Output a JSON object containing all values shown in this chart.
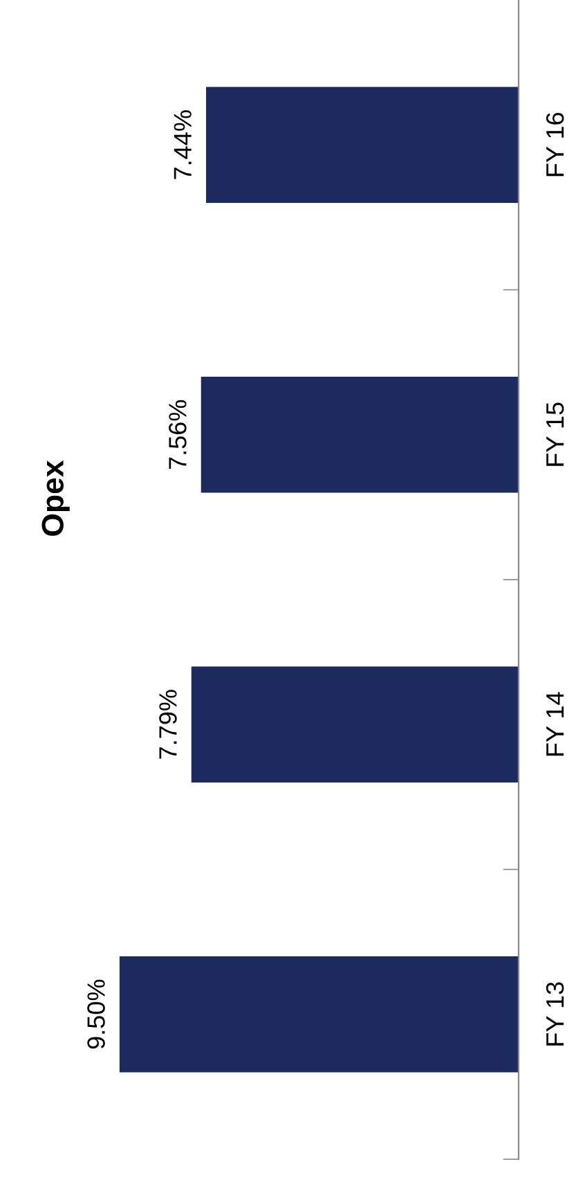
{
  "chart_data": {
    "type": "bar",
    "orientation": "horizontal",
    "title": "Opex",
    "categories": [
      "FY 16",
      "FY 15",
      "FY 14",
      "FY 13"
    ],
    "values": [
      7.44,
      7.56,
      7.79,
      9.5
    ],
    "value_labels": [
      "7.44%",
      "7.56%",
      "7.79%",
      "9.50%"
    ],
    "color": "#1c2a5e",
    "tick_labels": "y",
    "grid": false,
    "legend": false
  }
}
